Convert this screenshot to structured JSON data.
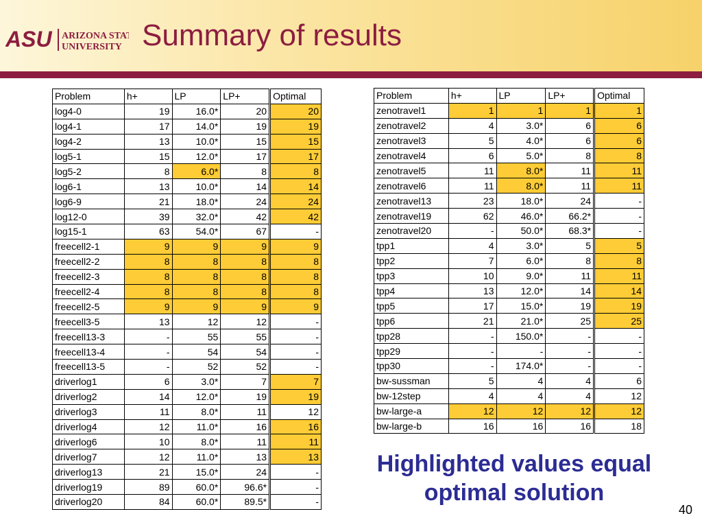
{
  "slide": {
    "title": "Summary of results",
    "logo_text": "ASU ARIZONA STATE UNIVERSITY",
    "callout_line1": "Highlighted values equal",
    "callout_line2": "optimal solution",
    "page_number": "40",
    "colors": {
      "header_bar": "#8c1d40",
      "highlight": "#fdcc36",
      "callout": "#2c2c94"
    }
  },
  "chart_data": [
    {
      "type": "table",
      "columns": [
        "Problem",
        "h+",
        "LP",
        "LP+",
        "Optimal"
      ],
      "rows": [
        {
          "cells": [
            "log4-0",
            "19",
            "16.0*",
            "20",
            "20"
          ],
          "hl": [
            false,
            false,
            false,
            true,
            true
          ]
        },
        {
          "cells": [
            "log4-1",
            "17",
            "14.0*",
            "19",
            "19"
          ],
          "hl": [
            false,
            false,
            false,
            true,
            true
          ]
        },
        {
          "cells": [
            "log4-2",
            "13",
            "10.0*",
            "15",
            "15"
          ],
          "hl": [
            false,
            false,
            false,
            true,
            true
          ]
        },
        {
          "cells": [
            "log5-1",
            "15",
            "12.0*",
            "17",
            "17"
          ],
          "hl": [
            false,
            false,
            false,
            true,
            true
          ]
        },
        {
          "cells": [
            "log5-2",
            "8",
            "6.0*",
            "8",
            "8"
          ],
          "hl": [
            false,
            true,
            false,
            true,
            true
          ]
        },
        {
          "cells": [
            "log6-1",
            "13",
            "10.0*",
            "14",
            "14"
          ],
          "hl": [
            false,
            false,
            false,
            true,
            true
          ]
        },
        {
          "cells": [
            "log6-9",
            "21",
            "18.0*",
            "24",
            "24"
          ],
          "hl": [
            false,
            false,
            false,
            true,
            true
          ]
        },
        {
          "cells": [
            "log12-0",
            "39",
            "32.0*",
            "42",
            "42"
          ],
          "hl": [
            false,
            false,
            false,
            true,
            true
          ]
        },
        {
          "cells": [
            "log15-1",
            "63",
            "54.0*",
            "67",
            "-"
          ],
          "hl": [
            false,
            false,
            false,
            false,
            false
          ]
        },
        {
          "cells": [
            "freecell2-1",
            "9",
            "9",
            "9",
            "9"
          ],
          "hl": [
            true,
            true,
            true,
            true,
            true
          ]
        },
        {
          "cells": [
            "freecell2-2",
            "8",
            "8",
            "8",
            "8"
          ],
          "hl": [
            true,
            true,
            true,
            true,
            true
          ]
        },
        {
          "cells": [
            "freecell2-3",
            "8",
            "8",
            "8",
            "8"
          ],
          "hl": [
            true,
            true,
            true,
            true,
            true
          ]
        },
        {
          "cells": [
            "freecell2-4",
            "8",
            "8",
            "8",
            "8"
          ],
          "hl": [
            true,
            true,
            true,
            true,
            true
          ]
        },
        {
          "cells": [
            "freecell2-5",
            "9",
            "9",
            "9",
            "9"
          ],
          "hl": [
            true,
            true,
            true,
            true,
            true
          ]
        },
        {
          "cells": [
            "freecell3-5",
            "13",
            "12",
            "12",
            "-"
          ],
          "hl": [
            false,
            false,
            false,
            false,
            false
          ]
        },
        {
          "cells": [
            "freecell13-3",
            "-",
            "55",
            "55",
            "-"
          ],
          "hl": [
            false,
            false,
            false,
            false,
            false
          ]
        },
        {
          "cells": [
            "freecell13-4",
            "-",
            "54",
            "54",
            "-"
          ],
          "hl": [
            false,
            false,
            false,
            false,
            false
          ]
        },
        {
          "cells": [
            "freecell13-5",
            "-",
            "52",
            "52",
            "-"
          ],
          "hl": [
            false,
            false,
            false,
            false,
            false
          ]
        },
        {
          "cells": [
            "driverlog1",
            "6",
            "3.0*",
            "7",
            "7"
          ],
          "hl": [
            false,
            false,
            false,
            true,
            true
          ]
        },
        {
          "cells": [
            "driverlog2",
            "14",
            "12.0*",
            "19",
            "19"
          ],
          "hl": [
            false,
            false,
            false,
            true,
            true
          ]
        },
        {
          "cells": [
            "driverlog3",
            "11",
            "8.0*",
            "11",
            "12"
          ],
          "hl": [
            false,
            false,
            false,
            false,
            true
          ]
        },
        {
          "cells": [
            "driverlog4",
            "12",
            "11.0*",
            "16",
            "16"
          ],
          "hl": [
            false,
            false,
            false,
            true,
            true
          ]
        },
        {
          "cells": [
            "driverlog6",
            "10",
            "8.0*",
            "11",
            "11"
          ],
          "hl": [
            false,
            false,
            false,
            true,
            true
          ]
        },
        {
          "cells": [
            "driverlog7",
            "12",
            "11.0*",
            "13",
            "13"
          ],
          "hl": [
            false,
            false,
            false,
            true,
            true
          ]
        },
        {
          "cells": [
            "driverlog13",
            "21",
            "15.0*",
            "24",
            "-"
          ],
          "hl": [
            false,
            false,
            false,
            false,
            false
          ]
        },
        {
          "cells": [
            "driverlog19",
            "89",
            "60.0*",
            "96.6*",
            "-"
          ],
          "hl": [
            false,
            false,
            false,
            false,
            false
          ]
        },
        {
          "cells": [
            "driverlog20",
            "84",
            "60.0*",
            "89.5*",
            "-"
          ],
          "hl": [
            false,
            false,
            false,
            false,
            false
          ]
        }
      ]
    },
    {
      "type": "table",
      "columns": [
        "Problem",
        "h+",
        "LP",
        "LP+",
        "Optimal"
      ],
      "rows": [
        {
          "cells": [
            "zenotravel1",
            "1",
            "1",
            "1",
            "1"
          ],
          "hl": [
            true,
            true,
            true,
            true,
            true
          ]
        },
        {
          "cells": [
            "zenotravel2",
            "4",
            "3.0*",
            "6",
            "6"
          ],
          "hl": [
            false,
            false,
            false,
            true,
            true
          ]
        },
        {
          "cells": [
            "zenotravel3",
            "5",
            "4.0*",
            "6",
            "6"
          ],
          "hl": [
            false,
            false,
            false,
            true,
            true
          ]
        },
        {
          "cells": [
            "zenotravel4",
            "6",
            "5.0*",
            "8",
            "8"
          ],
          "hl": [
            false,
            false,
            false,
            true,
            true
          ]
        },
        {
          "cells": [
            "zenotravel5",
            "11",
            "8.0*",
            "11",
            "11"
          ],
          "hl": [
            false,
            true,
            false,
            true,
            true
          ]
        },
        {
          "cells": [
            "zenotravel6",
            "11",
            "8.0*",
            "11",
            "11"
          ],
          "hl": [
            false,
            true,
            false,
            true,
            true
          ]
        },
        {
          "cells": [
            "zenotravel13",
            "23",
            "18.0*",
            "24",
            "-"
          ],
          "hl": [
            false,
            false,
            false,
            false,
            false
          ]
        },
        {
          "cells": [
            "zenotravel19",
            "62",
            "46.0*",
            "66.2*",
            "-"
          ],
          "hl": [
            false,
            false,
            false,
            false,
            false
          ]
        },
        {
          "cells": [
            "zenotravel20",
            "-",
            "50.0*",
            "68.3*",
            "-"
          ],
          "hl": [
            false,
            false,
            false,
            false,
            false
          ]
        },
        {
          "cells": [
            "tpp1",
            "4",
            "3.0*",
            "5",
            "5"
          ],
          "hl": [
            false,
            false,
            false,
            true,
            true
          ]
        },
        {
          "cells": [
            "tpp2",
            "7",
            "6.0*",
            "8",
            "8"
          ],
          "hl": [
            false,
            false,
            false,
            true,
            true
          ]
        },
        {
          "cells": [
            "tpp3",
            "10",
            "9.0*",
            "11",
            "11"
          ],
          "hl": [
            false,
            false,
            false,
            true,
            true
          ]
        },
        {
          "cells": [
            "tpp4",
            "13",
            "12.0*",
            "14",
            "14"
          ],
          "hl": [
            false,
            false,
            false,
            true,
            true
          ]
        },
        {
          "cells": [
            "tpp5",
            "17",
            "15.0*",
            "19",
            "19"
          ],
          "hl": [
            false,
            false,
            false,
            true,
            true
          ]
        },
        {
          "cells": [
            "tpp6",
            "21",
            "21.0*",
            "25",
            "25"
          ],
          "hl": [
            false,
            false,
            false,
            true,
            true
          ]
        },
        {
          "cells": [
            "tpp28",
            "-",
            "150.0*",
            "-",
            "-"
          ],
          "hl": [
            false,
            false,
            false,
            false,
            false
          ]
        },
        {
          "cells": [
            "tpp29",
            "-",
            "-",
            "-",
            "-"
          ],
          "hl": [
            false,
            false,
            false,
            false,
            false
          ]
        },
        {
          "cells": [
            "tpp30",
            "-",
            "174.0*",
            "-",
            "-"
          ],
          "hl": [
            false,
            false,
            false,
            false,
            false
          ]
        },
        {
          "cells": [
            "bw-sussman",
            "5",
            "4",
            "4",
            "6"
          ],
          "hl": [
            false,
            false,
            false,
            false,
            true
          ]
        },
        {
          "cells": [
            "bw-12step",
            "4",
            "4",
            "4",
            "12"
          ],
          "hl": [
            false,
            false,
            false,
            false,
            true
          ]
        },
        {
          "cells": [
            "bw-large-a",
            "12",
            "12",
            "12",
            "12"
          ],
          "hl": [
            true,
            true,
            true,
            true,
            true
          ]
        },
        {
          "cells": [
            "bw-large-b",
            "16",
            "16",
            "16",
            "18"
          ],
          "hl": [
            false,
            false,
            false,
            false,
            true
          ]
        }
      ]
    }
  ]
}
